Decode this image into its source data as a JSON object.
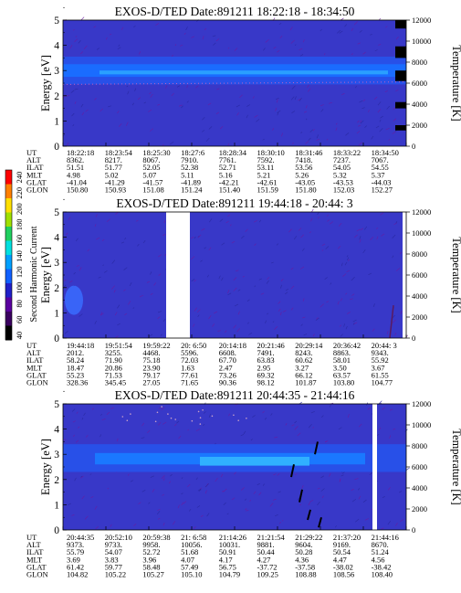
{
  "colorbar": {
    "label": "Second Harmonic Current",
    "ticks": [
      "40",
      "60",
      "80",
      "100",
      "120",
      "140",
      "160",
      "180",
      "200",
      "220",
      "240"
    ],
    "colors": [
      "#000000",
      "#3a0060",
      "#5a00a0",
      "#2020c8",
      "#1060ff",
      "#00a0ff",
      "#00e0e0",
      "#20d060",
      "#a0e000",
      "#ffe000",
      "#ff8000",
      "#ff0000"
    ]
  },
  "chart_data": [
    {
      "type": "heatmap",
      "title": "EXOS-D/TED    Date:891211   18:22:18 - 18:34:50",
      "ylabel": "Energy [eV]",
      "ylabel2": "Temperature [K]",
      "ylim": [
        0,
        5
      ],
      "y2lim": [
        0,
        12000
      ],
      "yticks": [
        "0",
        "1",
        "2",
        "3",
        "4",
        "5"
      ],
      "y2ticks": [
        "0",
        "2000",
        "4000",
        "6000",
        "8000",
        "10000",
        "12000"
      ],
      "row_labels": [
        "UT",
        "ALT",
        "ILAT",
        "MLT",
        "GLAT",
        "GLON"
      ],
      "columns": [
        [
          "18:22:18",
          "8362.",
          "51.51",
          "4.98",
          "-41.04",
          "150.80"
        ],
        [
          "18:23:54",
          "8217.",
          "51.77",
          "5.02",
          "-41.29",
          "150.93"
        ],
        [
          "18:25:30",
          "8067.",
          "52.05",
          "5.07",
          "-41.57",
          "151.08"
        ],
        [
          "18:27:6",
          "7910.",
          "52.38",
          "5.11",
          "-41.89",
          "151.24"
        ],
        [
          "18:28:34",
          "7761.",
          "52.71",
          "5.16",
          "-42.21",
          "151.40"
        ],
        [
          "18:30:10",
          "7592.",
          "53.11",
          "5.21",
          "-42.61",
          "151.59"
        ],
        [
          "18:31:46",
          "7418.",
          "53.56",
          "5.26",
          "-43.05",
          "151.80"
        ],
        [
          "18:33:22",
          "7237.",
          "54.05",
          "5.32",
          "-43.53",
          "152.03"
        ],
        [
          "18:34:50",
          "7067.",
          "54.55",
          "5.37",
          "-44.03",
          "152.27"
        ]
      ]
    },
    {
      "type": "heatmap",
      "title": "EXOS-D/TED    Date:891211   19:44:18 - 20:44: 3",
      "ylabel": "Energy [eV]",
      "ylabel2": "Temperature [K]",
      "ylim": [
        0,
        5
      ],
      "y2lim": [
        0,
        12000
      ],
      "yticks": [
        "0",
        "1",
        "2",
        "3",
        "4",
        "5"
      ],
      "y2ticks": [
        "0",
        "2000",
        "4000",
        "6000",
        "8000",
        "10000",
        "12000"
      ],
      "row_labels": [
        "UT",
        "ALT",
        "ILAT",
        "MLT",
        "GLAT",
        "GLON"
      ],
      "columns": [
        [
          "19:44:18",
          "2012.",
          "58.24",
          "18.47",
          "55.23",
          "328.36"
        ],
        [
          "19:51:54",
          "3255.",
          "71.90",
          "20.86",
          "71.53",
          "345.45"
        ],
        [
          "19:59:22",
          "4468.",
          "75.18",
          "23.90",
          "79.17",
          "27.05"
        ],
        [
          "20: 6:50",
          "5596.",
          "72.03",
          "1.63",
          "77.61",
          "71.65"
        ],
        [
          "20:14:18",
          "6608.",
          "67.70",
          "2.47",
          "73.26",
          "90.36"
        ],
        [
          "20:21:46",
          "7491.",
          "63.83",
          "2.95",
          "69.32",
          "98.12"
        ],
        [
          "20:29:14",
          "8243.",
          "60.62",
          "3.27",
          "66.12",
          "101.87"
        ],
        [
          "20:36:42",
          "8863.",
          "58.01",
          "3.50",
          "63.57",
          "103.80"
        ],
        [
          "20:44: 3",
          "9343.",
          "55.92",
          "3.67",
          "61.55",
          "104.77"
        ]
      ]
    },
    {
      "type": "heatmap",
      "title": "EXOS-D/TED    Date:891211   20:44:35 - 21:44:16",
      "ylabel": "Energy [eV]",
      "ylabel2": "Temperature [K]",
      "ylim": [
        0,
        5
      ],
      "y2lim": [
        0,
        12000
      ],
      "yticks": [
        "0",
        "1",
        "2",
        "3",
        "4",
        "5"
      ],
      "y2ticks": [
        "0",
        "2000",
        "4000",
        "6000",
        "8000",
        "10000",
        "12000"
      ],
      "row_labels": [
        "UT",
        "ALT",
        "ILAT",
        "MLT",
        "GLAT",
        "GLON"
      ],
      "columns": [
        [
          "20:44:35",
          "9373.",
          "55.79",
          "3.69",
          "61.42",
          "104.82"
        ],
        [
          "20:52:10",
          "9733.",
          "54.07",
          "3.83",
          "59.77",
          "105.22"
        ],
        [
          "20:59:38",
          "9958.",
          "52.72",
          "3.96",
          "58.48",
          "105.27"
        ],
        [
          "21: 6:58",
          "10056.",
          "51.68",
          "4.07",
          "57.49",
          "105.10"
        ],
        [
          "21:14:26",
          "10031.",
          "50.91",
          "4.17",
          "56.75",
          "104.79"
        ],
        [
          "21:21:54",
          "9881.",
          "50.44",
          "4.27",
          "-37.72",
          "109.25"
        ],
        [
          "21:29:22",
          "9604.",
          "50.28",
          "4.36",
          "-37.58",
          "108.88"
        ],
        [
          "21:37:20",
          "9169.",
          "50.54",
          "4.47",
          "-38.02",
          "108.56"
        ],
        [
          "21:44:16",
          "8670.",
          "51.24",
          "4.56",
          "-38.42",
          "108.40"
        ]
      ]
    }
  ]
}
